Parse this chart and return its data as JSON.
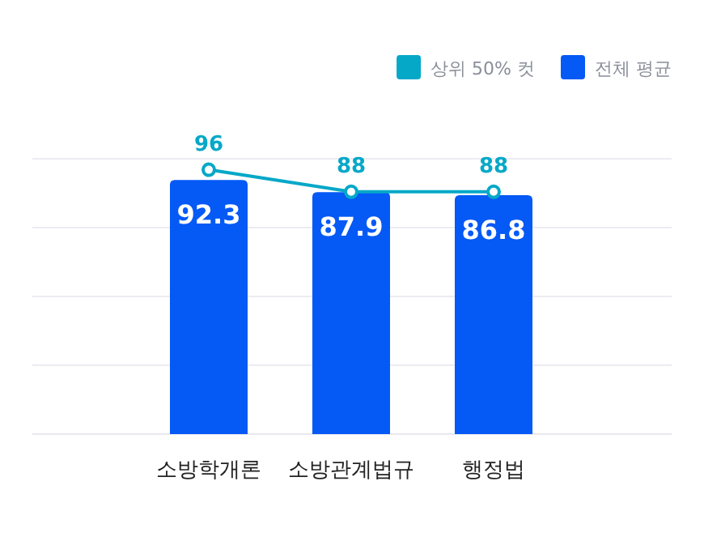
{
  "chart_data": {
    "type": "bar",
    "categories": [
      "소방학개론",
      "소방관계법규",
      "행정법"
    ],
    "series": [
      {
        "name": "상위 50% 컷",
        "type": "line",
        "color": "#06a8c8",
        "values": [
          96,
          88,
          88
        ]
      },
      {
        "name": "전체 평균",
        "color": "#0559f5",
        "values": [
          92.3,
          87.9,
          86.8
        ]
      }
    ],
    "ylim": [
      0,
      100
    ],
    "yticks": [
      {
        "value": 25,
        "label": null
      },
      {
        "value": 50,
        "label": null
      },
      {
        "value": 75,
        "label": null
      },
      {
        "value": 100,
        "label": null
      }
    ],
    "grid": "y",
    "legend": "top right",
    "marker": "circle",
    "data_labels": true,
    "tick_labels": "x"
  }
}
